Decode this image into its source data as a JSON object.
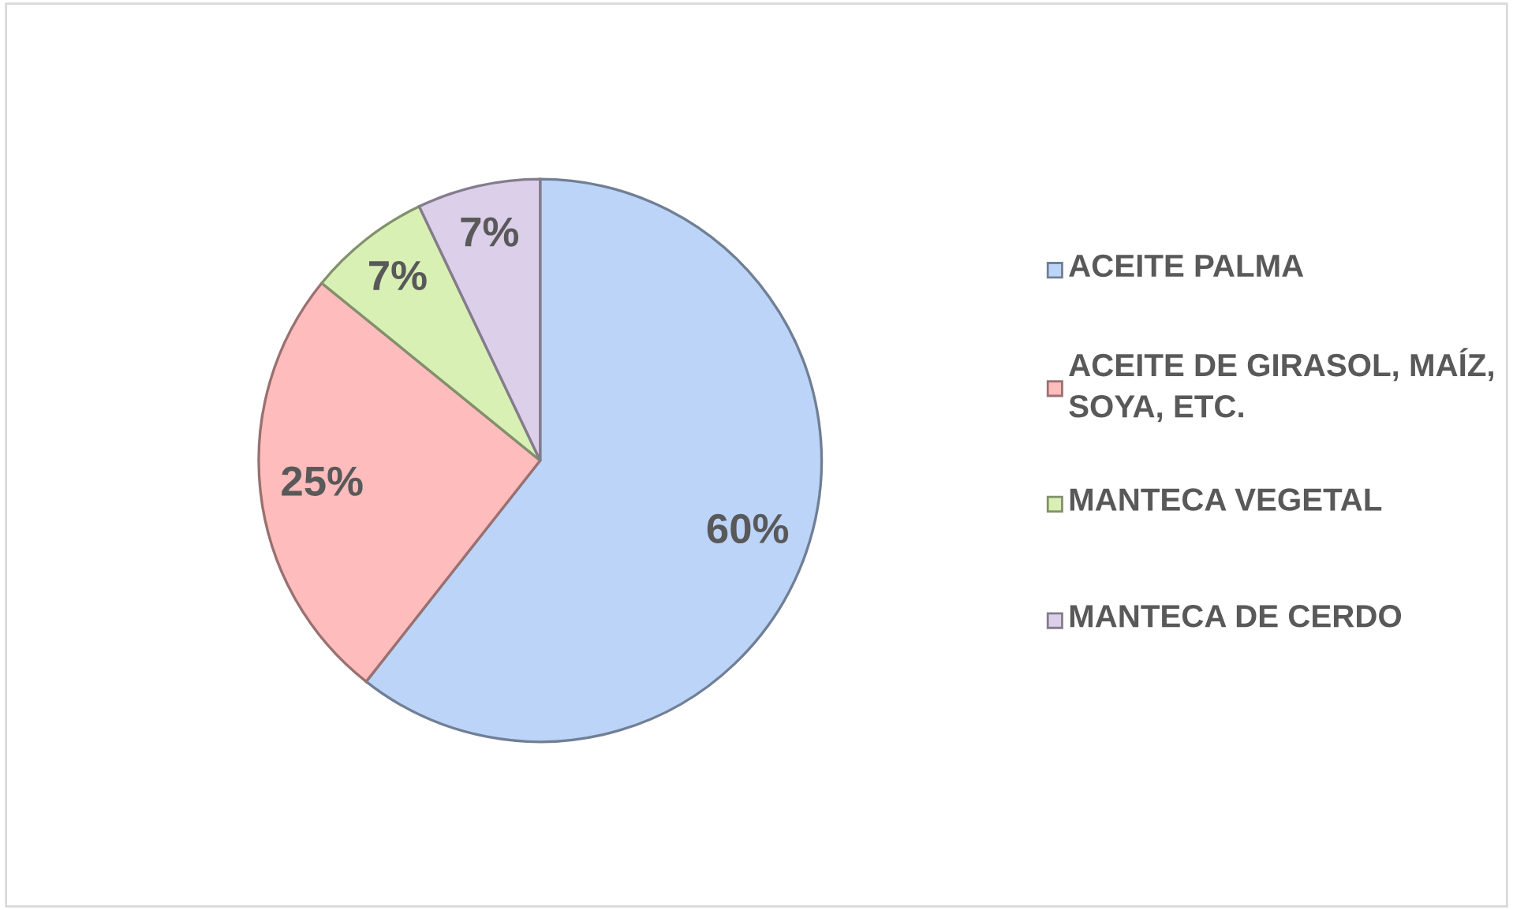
{
  "chart_data": {
    "type": "pie",
    "categories": [
      "ACEITE PALMA",
      "ACEITE DE GIRASOL, MAÍZ, SOYA, ETC.",
      "MANTECA VEGETAL",
      "MANTECA DE CERDO"
    ],
    "values": [
      60,
      25,
      7,
      7
    ],
    "colors": [
      "#bcd4f8",
      "#ffbcbc",
      "#d8f0b4",
      "#dccfea"
    ],
    "value_labels": [
      "60%",
      "25%",
      "7%",
      "7%"
    ],
    "legend": "right"
  }
}
